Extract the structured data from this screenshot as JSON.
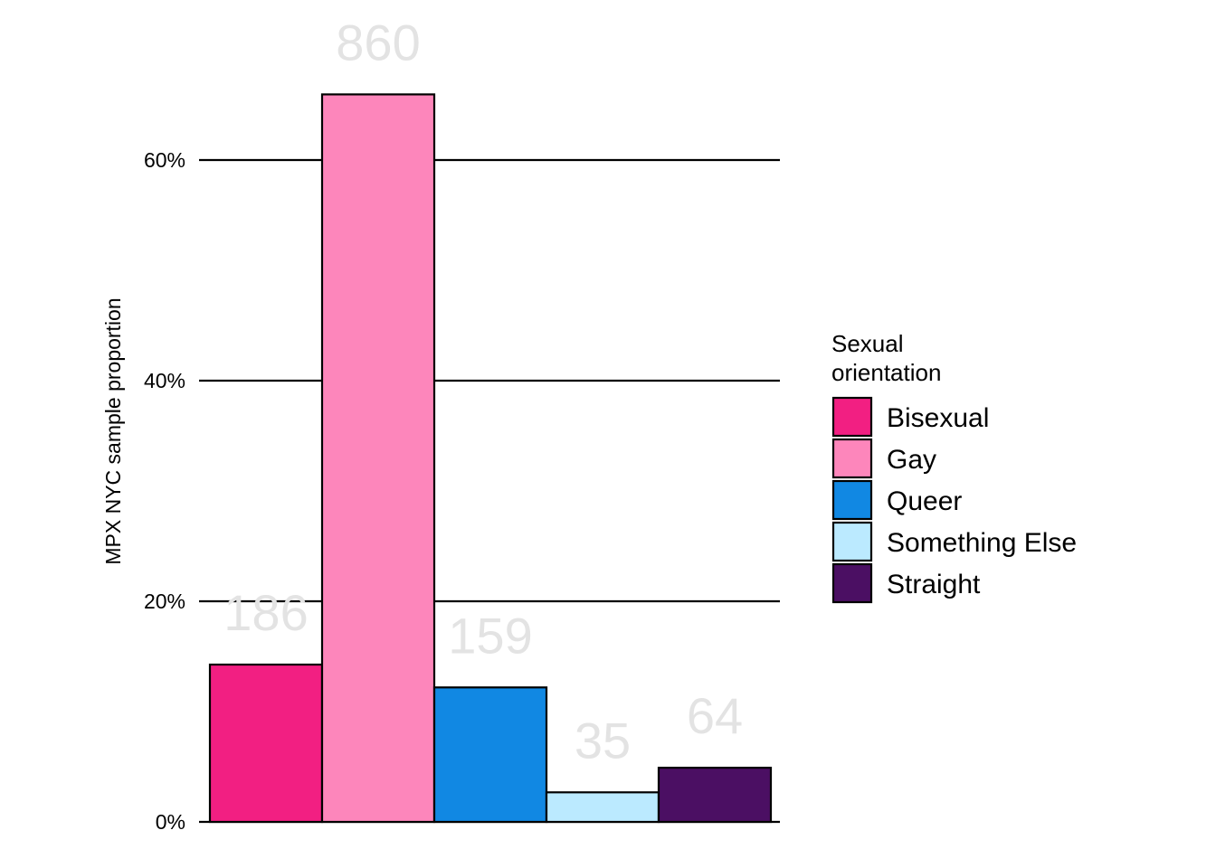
{
  "chart_data": {
    "type": "bar",
    "title": "",
    "xlabel": "",
    "ylabel": "MPX NYC sample proportion",
    "ylim": [
      0,
      0.7
    ],
    "yticks": [
      0,
      0.2,
      0.4,
      0.6
    ],
    "ytick_labels": [
      "0%",
      "20%",
      "40%",
      "60%"
    ],
    "grid": "horizontal major",
    "categories": [
      "Bisexual",
      "Gay",
      "Queer",
      "Something Else",
      "Straight"
    ],
    "counts": [
      186,
      860,
      159,
      35,
      64
    ],
    "values": [
      0.1426,
      0.6595,
      0.1219,
      0.0268,
      0.0491
    ],
    "colors": [
      "#f21f82",
      "#fd86bb",
      "#1188e3",
      "#bbeaff",
      "#4b0f63"
    ],
    "label_color": "#e3e3e3",
    "legend": {
      "title": "Sexual orientation",
      "title_lines": [
        "Sexual",
        "orientation"
      ],
      "placement": "right",
      "entries": [
        "Bisexual",
        "Gay",
        "Queer",
        "Something Else",
        "Straight"
      ]
    }
  }
}
